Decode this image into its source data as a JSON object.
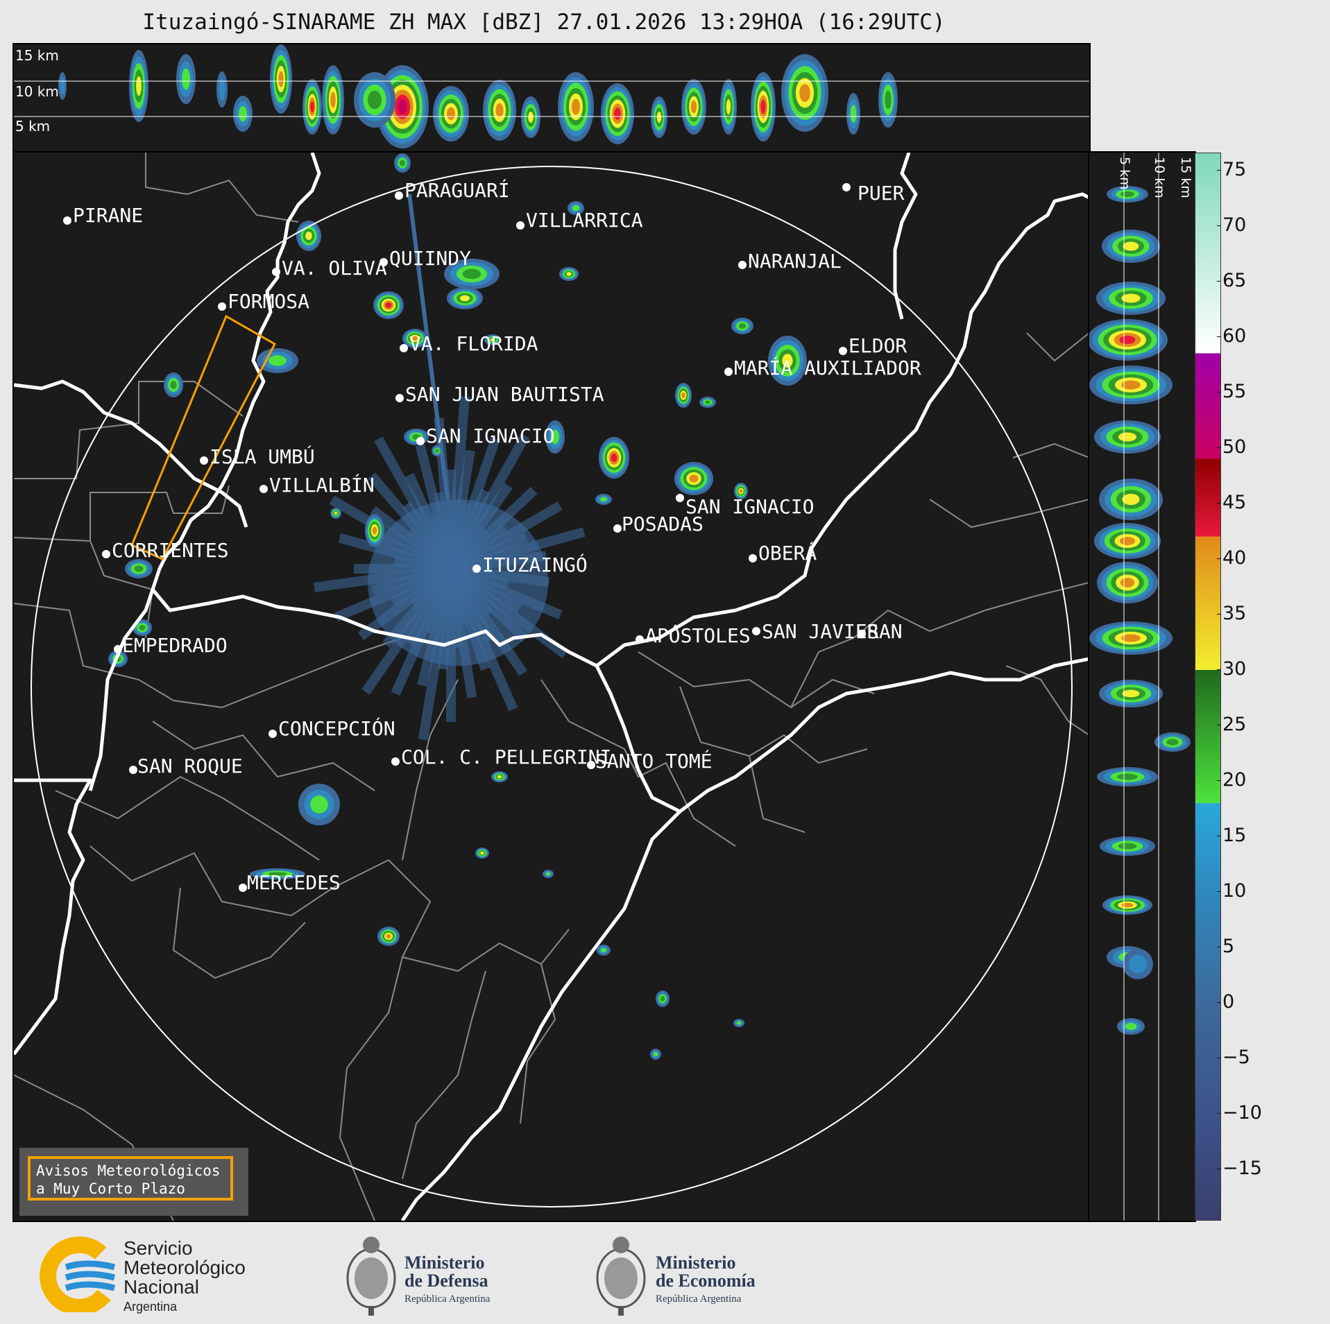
{
  "title": "Ituzaingó-SINARAME ZH MAX [dBZ] 27.01.2026 13:29HOA (16:29UTC)",
  "top_panel": {
    "height_labels": [
      "15 km",
      "10 km",
      "5 km"
    ]
  },
  "right_panel": {
    "height_labels": [
      "5 km",
      "10 km",
      "15 km"
    ]
  },
  "colorbar": {
    "unit": "dBZ",
    "ticks": [
      "75",
      "70",
      "65",
      "60",
      "55",
      "50",
      "45",
      "40",
      "35",
      "30",
      "25",
      "20",
      "15",
      "10",
      "5",
      "0",
      "−5",
      "−10",
      "−15"
    ],
    "tick_values": [
      75,
      70,
      65,
      60,
      55,
      50,
      45,
      40,
      35,
      30,
      25,
      20,
      15,
      10,
      5,
      0,
      -5,
      -10,
      -15
    ],
    "range": [
      -19.5,
      76.5
    ],
    "stops": [
      {
        "v": -19.5,
        "c": "#3a3f6e"
      },
      {
        "v": -12,
        "c": "#3c4f86"
      },
      {
        "v": 0,
        "c": "#3d6a9c"
      },
      {
        "v": 10,
        "c": "#2f88bf"
      },
      {
        "v": 18,
        "c": "#2aa8d8"
      },
      {
        "v": 18.01,
        "c": "#4ee23e"
      },
      {
        "v": 29.99,
        "c": "#1f6a1c"
      },
      {
        "v": 30,
        "c": "#f2ee30"
      },
      {
        "v": 42,
        "c": "#e08a1a"
      },
      {
        "v": 42.01,
        "c": "#e8183a"
      },
      {
        "v": 49,
        "c": "#8e0000"
      },
      {
        "v": 49.01,
        "c": "#c80060"
      },
      {
        "v": 58.5,
        "c": "#a000a8"
      },
      {
        "v": 58.51,
        "c": "#ffffff"
      },
      {
        "v": 76.5,
        "c": "#7fd9b8"
      }
    ]
  },
  "cities": [
    {
      "name": "PIRANE"
    },
    {
      "name": "PARAGUARÍ"
    },
    {
      "name": "VILLARRICA"
    },
    {
      "name": "VA. OLIVA"
    },
    {
      "name": "QUIINDY"
    },
    {
      "name": "NARANJAL"
    },
    {
      "name": "FORMOSA"
    },
    {
      "name": "VA. FLORIDA"
    },
    {
      "name": "ELDOR"
    },
    {
      "name": "MARÍA AUXILIADOR"
    },
    {
      "name": "SAN JUAN BAUTISTA"
    },
    {
      "name": "SAN IGNACIO"
    },
    {
      "name": "ISLA UMBÚ"
    },
    {
      "name": "VILLALBÍN"
    },
    {
      "name": "SAN IGNACIO"
    },
    {
      "name": "POSADAS"
    },
    {
      "name": "CORRIENTES"
    },
    {
      "name": "ITUZAINGÓ"
    },
    {
      "name": "OBERÁ"
    },
    {
      "name": "SAN JAVIER"
    },
    {
      "name": "SAN"
    },
    {
      "name": "APÓSTOLES"
    },
    {
      "name": "EMPEDRADO"
    },
    {
      "name": "CONCEPCIÓN"
    },
    {
      "name": "COL. C. PELLEGRINI"
    },
    {
      "name": "SANTO TOMÉ"
    },
    {
      "name": "SAN ROQUE"
    },
    {
      "name": "MERCEDES"
    },
    {
      "name": "PUER"
    }
  ],
  "alert_box": {
    "line1": "Avisos Meteorológicos",
    "line2": "a Muy Corto Plazo"
  },
  "logos": {
    "smn": {
      "line1": "Servicio",
      "line2": "Meteorológico",
      "line3": "Nacional",
      "sub": "Argentina"
    },
    "defensa": {
      "line1": "Ministerio",
      "line2": "de Defensa",
      "sub": "República Argentina"
    },
    "economia": {
      "line1": "Ministerio",
      "line2": "de Economía",
      "sub": "República Argentina"
    }
  },
  "colors": {
    "background": "#1b1b1b",
    "river": "#ffffff",
    "border": "#8a8a8a",
    "warning": "#f5a000",
    "range_ring": "#ffffff"
  }
}
